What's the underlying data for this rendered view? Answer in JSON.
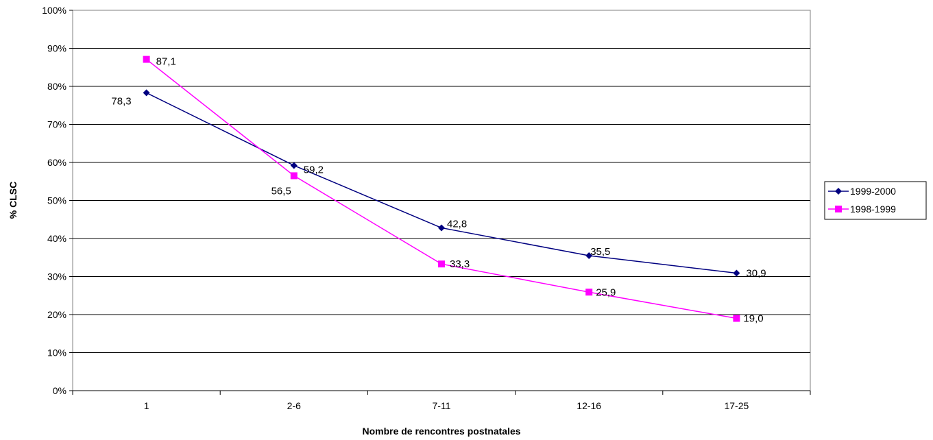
{
  "chart_data": {
    "type": "line",
    "title": "",
    "xlabel": "Nombre de rencontres postnatales",
    "ylabel": "% CLSC",
    "categories": [
      "1",
      "2-6",
      "7-11",
      "12-16",
      "17-25"
    ],
    "ylim": [
      0,
      100
    ],
    "yticks": [
      "0%",
      "10%",
      "20%",
      "30%",
      "40%",
      "50%",
      "60%",
      "70%",
      "80%",
      "90%",
      "100%"
    ],
    "grid": true,
    "legend_position": "right",
    "series": [
      {
        "name": "1999-2000",
        "color": "#000080",
        "marker": "diamond",
        "values": [
          78.3,
          59.2,
          42.8,
          35.5,
          30.9
        ],
        "labels": [
          "78,3",
          "59,2",
          "42,8",
          "35,5",
          "30,9"
        ]
      },
      {
        "name": "1998-1999",
        "color": "#ff00ff",
        "marker": "square",
        "values": [
          87.1,
          56.5,
          33.3,
          25.9,
          19.0
        ],
        "labels": [
          "87,1",
          "56,5",
          "33,3",
          "25,9",
          "19,0"
        ]
      }
    ]
  }
}
